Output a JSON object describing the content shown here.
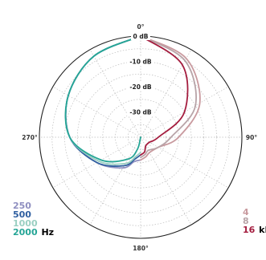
{
  "chart_data": {
    "type": "polar-line",
    "title": "",
    "radial_unit": "dB",
    "radial_ticks": [
      "0 dB",
      "-10 dB",
      "-20 dB",
      "-30 dB"
    ],
    "radial_tick_values": [
      0,
      -10,
      -20,
      -30
    ],
    "angle_labels": [
      "0°",
      "90°",
      "180°",
      "270°"
    ],
    "angle_label_values": [
      0,
      90,
      180,
      270
    ],
    "rlim": [
      -40,
      0
    ],
    "grid": true,
    "left_half": {
      "theta": [
        0,
        30,
        60,
        90,
        120,
        150,
        165,
        180
      ],
      "unit": "Hz",
      "series": [
        {
          "name": "250",
          "color": "#8f8fc0",
          "values": [
            0,
            -3,
            -7,
            -12,
            -20,
            -26,
            -30,
            -31
          ]
        },
        {
          "name": "500",
          "color": "#2f5fa0",
          "values": [
            0,
            -3,
            -7,
            -12,
            -20,
            -27,
            -31,
            -33
          ]
        },
        {
          "name": "1000",
          "color": "#9acfc2",
          "values": [
            0,
            -3,
            -7,
            -12,
            -21,
            -28,
            -32,
            -34
          ]
        },
        {
          "name": "2000",
          "color": "#25a596",
          "values": [
            0,
            -3,
            -7,
            -12,
            -22,
            -30,
            -35,
            -40
          ]
        }
      ]
    },
    "right_half": {
      "theta": [
        0,
        30,
        60,
        90,
        120,
        150,
        165,
        180
      ],
      "unit": "kHz",
      "series": [
        {
          "name": "4",
          "color": "#c99a9f",
          "values": [
            0,
            -4,
            -13,
            -25,
            -32,
            -33,
            -32,
            -31
          ]
        },
        {
          "name": "8",
          "color": "#b8a4a8",
          "values": [
            0,
            -5,
            -15,
            -28,
            -32,
            -34,
            -33,
            -32
          ]
        },
        {
          "name": "16",
          "color": "#a41c3e",
          "values": [
            0,
            -7,
            -20,
            -33,
            -36,
            -36,
            -34,
            -33
          ]
        }
      ]
    }
  }
}
